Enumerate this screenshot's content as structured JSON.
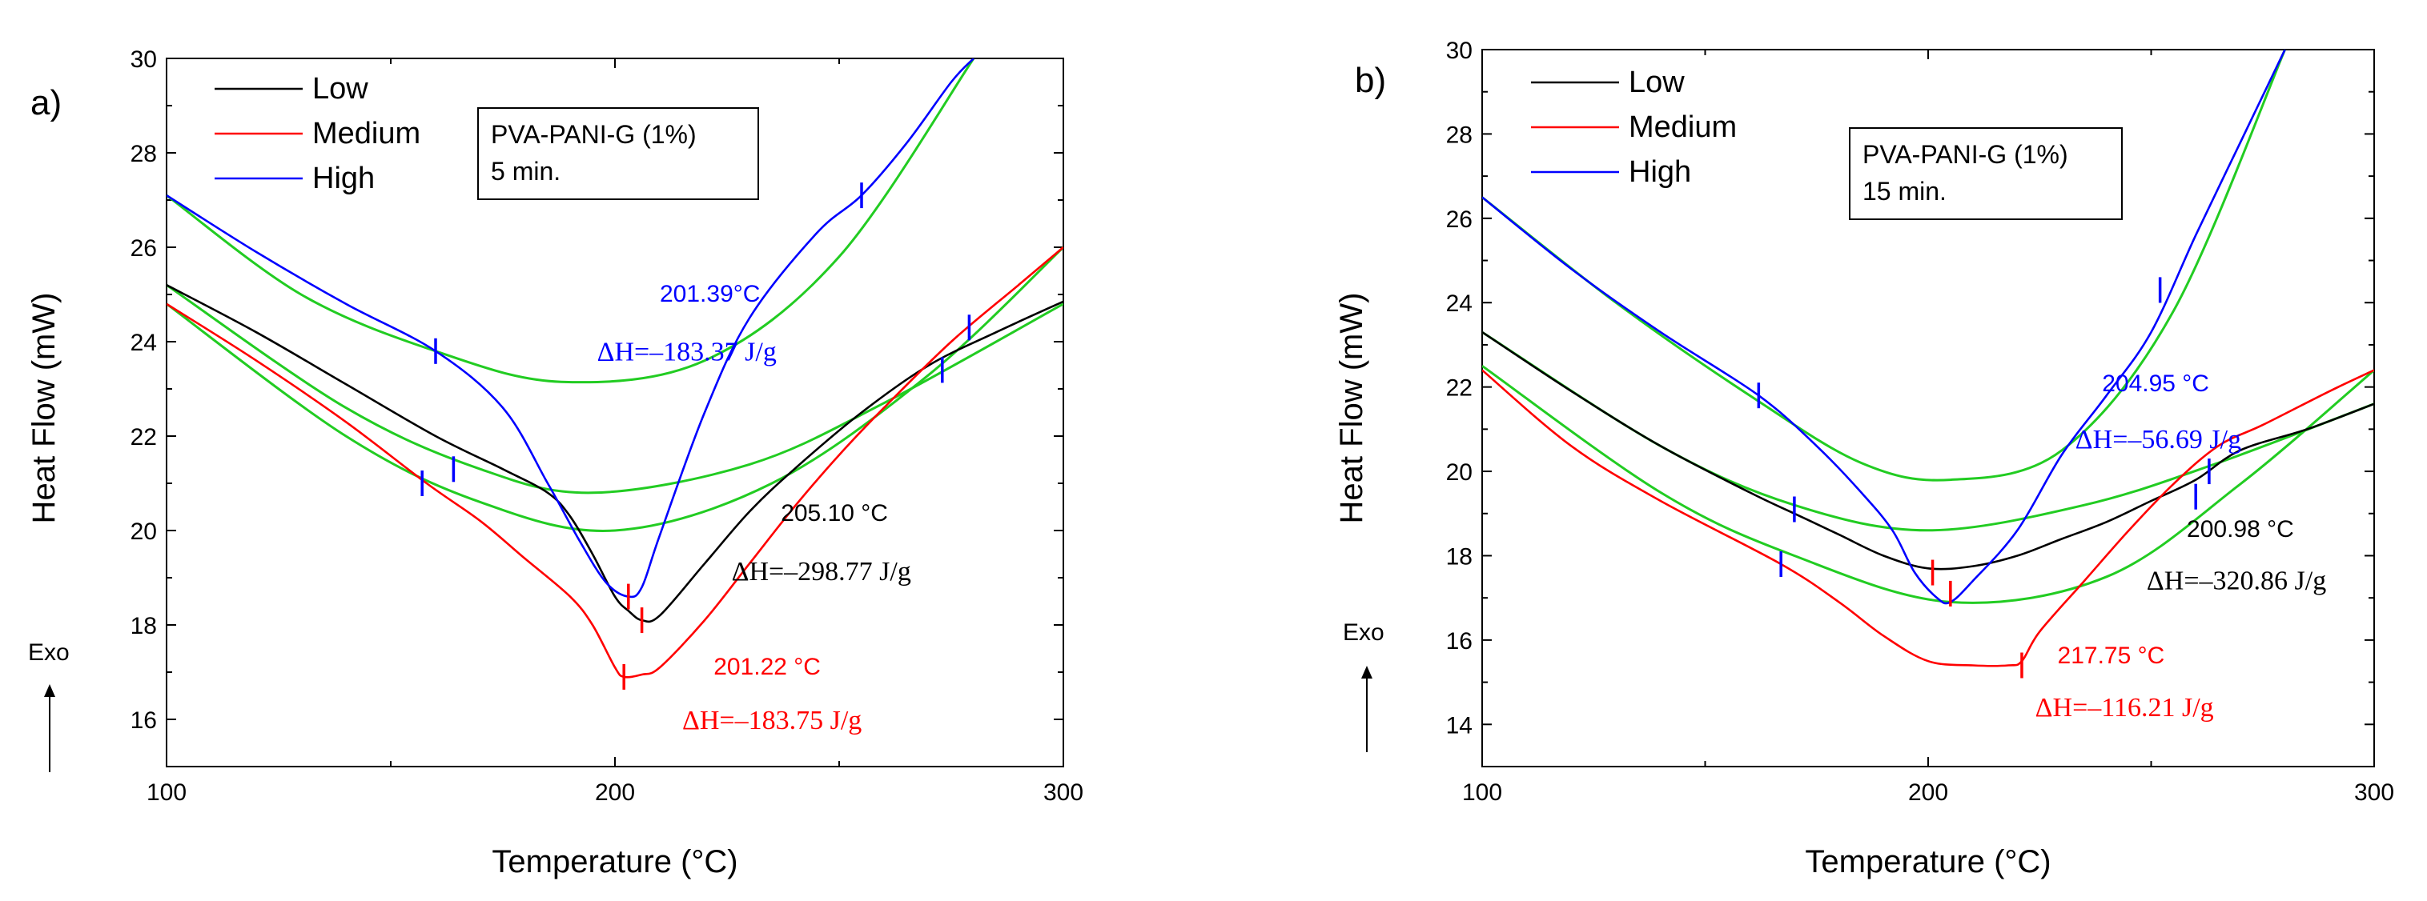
{
  "chart_data": [
    {
      "type": "line",
      "panel_label": "a)",
      "xlabel": "Temperature (°C)",
      "ylabel": "Heat Flow (mW)",
      "xlim": [
        100,
        300
      ],
      "ylim": [
        15,
        30
      ],
      "xticks": [
        "100",
        "200",
        "300"
      ],
      "yticks": [
        "16",
        "18",
        "20",
        "22",
        "24",
        "26",
        "28",
        "30"
      ],
      "exo_label": "Exo",
      "box_lines": [
        "PVA-PANI-G (1%)",
        "5 min."
      ],
      "legend": [
        "Low",
        "Medium",
        "High"
      ],
      "colors": {
        "Low": "#000000",
        "Medium": "#ff0000",
        "High": "#0000ff",
        "baseline": "#22cc22"
      },
      "series": [
        {
          "name": "Low",
          "x": [
            100,
            120,
            140,
            160,
            175,
            185,
            190,
            195,
            200,
            203,
            206,
            210,
            220,
            230,
            240,
            255,
            270,
            285,
            300
          ],
          "y": [
            25.2,
            24.2,
            23.1,
            22.0,
            21.3,
            20.8,
            20.3,
            19.5,
            18.6,
            18.3,
            18.1,
            18.2,
            19.3,
            20.4,
            21.3,
            22.5,
            23.5,
            24.2,
            24.85
          ]
        },
        {
          "name": "Medium",
          "x": [
            100,
            120,
            140,
            158,
            170,
            180,
            190,
            195,
            200,
            202,
            206,
            210,
            220,
            230,
            240,
            250,
            260,
            275,
            290,
            300
          ],
          "y": [
            24.8,
            23.6,
            22.3,
            21.0,
            20.2,
            19.4,
            18.6,
            18.0,
            17.1,
            16.9,
            16.95,
            17.1,
            18.1,
            19.3,
            20.5,
            21.6,
            22.6,
            24.0,
            25.2,
            26.0
          ],
          "kinks": [
            {
              "x": 175,
              "y": 19.8
            }
          ]
        },
        {
          "name": "High",
          "x": [
            100,
            120,
            140,
            160,
            175,
            185,
            192,
            198,
            203,
            206,
            210,
            220,
            230,
            245,
            255,
            265,
            275,
            280
          ],
          "y": [
            27.1,
            25.9,
            24.8,
            23.8,
            22.6,
            21.0,
            19.8,
            18.9,
            18.6,
            18.8,
            19.9,
            22.5,
            24.5,
            26.3,
            27.1,
            28.2,
            29.5,
            30.0
          ]
        }
      ],
      "baselines": [
        {
          "x": [
            100,
            130,
            160,
            188,
            220,
            250,
            280
          ],
          "y": [
            27.1,
            25.0,
            23.8,
            23.15,
            23.6,
            25.8,
            30.0
          ]
        },
        {
          "x": [
            100,
            140,
            170,
            195,
            230,
            260,
            300
          ],
          "y": [
            25.2,
            22.6,
            21.3,
            20.8,
            21.4,
            22.7,
            24.8
          ]
        },
        {
          "x": [
            100,
            140,
            170,
            200,
            235,
            270,
            300
          ],
          "y": [
            24.8,
            22.0,
            20.6,
            20.0,
            21.0,
            23.3,
            26.0
          ]
        }
      ],
      "markers": [
        {
          "series": "High",
          "x": 160,
          "y": 23.8
        },
        {
          "series": "High",
          "x": 255,
          "y": 27.1
        },
        {
          "series": "High",
          "x": 157,
          "y": 21.0
        },
        {
          "series": "High",
          "x": 164,
          "y": 21.3
        },
        {
          "series": "High",
          "x": 273,
          "y": 23.4
        },
        {
          "series": "High",
          "x": 279,
          "y": 24.3
        },
        {
          "series": "Medium",
          "x": 203,
          "y": 18.6
        },
        {
          "series": "Medium",
          "x": 206,
          "y": 18.1
        },
        {
          "series": "Medium",
          "x": 202,
          "y": 16.9
        }
      ],
      "annotations": [
        {
          "text": "201.39°C",
          "color": "#0000ff",
          "x": 210,
          "y": 24.85,
          "font": "sans"
        },
        {
          "text": "ΔH=–183.37 J/g",
          "color": "#0000ff",
          "x": 196,
          "y": 23.6,
          "font": "serif"
        },
        {
          "text": "205.10 °C",
          "color": "#000000",
          "x": 237,
          "y": 20.2,
          "font": "sans"
        },
        {
          "text": "ΔH=–298.77 J/g",
          "color": "#000000",
          "x": 226,
          "y": 18.95,
          "font": "serif"
        },
        {
          "text": "201.22 °C",
          "color": "#ff0000",
          "x": 222,
          "y": 16.95,
          "font": "sans"
        },
        {
          "text": "ΔH=–183.75 J/g",
          "color": "#ff0000",
          "x": 215,
          "y": 15.8,
          "font": "serif"
        }
      ]
    },
    {
      "type": "line",
      "panel_label": "b)",
      "xlabel": "Temperature (°C)",
      "ylabel": "Heat Flow (mW)",
      "xlim": [
        100,
        300
      ],
      "ylim": [
        13,
        30
      ],
      "xticks": [
        "100",
        "200",
        "300"
      ],
      "yticks": [
        "14",
        "16",
        "18",
        "20",
        "22",
        "24",
        "26",
        "28",
        "30"
      ],
      "exo_label": "Exo",
      "box_lines": [
        "PVA-PANI-G (1%)",
        "15 min."
      ],
      "legend": [
        "Low",
        "Medium",
        "High"
      ],
      "colors": {
        "Low": "#000000",
        "Medium": "#ff0000",
        "High": "#0000ff",
        "baseline": "#22cc22"
      },
      "series": [
        {
          "name": "Low",
          "x": [
            100,
            120,
            140,
            160,
            170,
            180,
            190,
            200,
            210,
            220,
            230,
            240,
            250,
            260,
            270,
            285,
            300
          ],
          "y": [
            23.3,
            21.9,
            20.6,
            19.5,
            19.0,
            18.5,
            18.0,
            17.7,
            17.75,
            18.0,
            18.4,
            18.8,
            19.3,
            19.8,
            20.5,
            21.0,
            21.6
          ]
        },
        {
          "name": "Medium",
          "x": [
            100,
            120,
            140,
            167,
            180,
            190,
            200,
            210,
            218,
            221,
            225,
            235,
            245,
            255,
            265,
            275,
            290,
            300
          ],
          "y": [
            22.4,
            20.6,
            19.3,
            17.8,
            16.9,
            16.1,
            15.5,
            15.4,
            15.4,
            15.5,
            16.2,
            17.4,
            18.6,
            19.7,
            20.6,
            21.1,
            21.9,
            22.4
          ]
        },
        {
          "name": "High",
          "x": [
            100,
            120,
            140,
            162,
            175,
            185,
            192,
            197,
            202,
            205,
            210,
            220,
            230,
            240,
            250,
            260,
            270,
            280
          ],
          "y": [
            26.5,
            24.8,
            23.3,
            21.8,
            20.6,
            19.5,
            18.6,
            17.6,
            17.0,
            16.9,
            17.4,
            18.6,
            20.4,
            21.8,
            23.3,
            25.6,
            27.8,
            30.0
          ]
        }
      ],
      "baselines": [
        {
          "x": [
            100,
            130,
            160,
            185,
            205,
            230,
            255,
            280
          ],
          "y": [
            26.5,
            24.0,
            21.8,
            20.2,
            19.8,
            20.5,
            23.8,
            30.0
          ]
        },
        {
          "x": [
            100,
            140,
            170,
            200,
            235,
            265,
            300
          ],
          "y": [
            23.3,
            20.6,
            19.2,
            18.6,
            19.2,
            20.2,
            21.6
          ]
        },
        {
          "x": [
            100,
            140,
            170,
            205,
            240,
            270,
            300
          ],
          "y": [
            22.5,
            19.5,
            18.0,
            16.9,
            17.5,
            19.7,
            22.4
          ]
        }
      ],
      "markers": [
        {
          "series": "High",
          "x": 162,
          "y": 21.8
        },
        {
          "series": "High",
          "x": 252,
          "y": 24.3
        },
        {
          "series": "High",
          "x": 170,
          "y": 19.1
        },
        {
          "series": "High",
          "x": 167,
          "y": 17.8
        },
        {
          "series": "High",
          "x": 263,
          "y": 20.0
        },
        {
          "series": "High",
          "x": 260,
          "y": 19.4
        },
        {
          "series": "Medium",
          "x": 201,
          "y": 17.6
        },
        {
          "series": "Medium",
          "x": 205,
          "y": 17.1
        },
        {
          "series": "Medium",
          "x": 221,
          "y": 15.4
        }
      ],
      "annotations": [
        {
          "text": "204.95 °C",
          "color": "#0000ff",
          "x": 239,
          "y": 21.9,
          "font": "sans"
        },
        {
          "text": "ΔH=–56.69 J/g",
          "color": "#0000ff",
          "x": 233,
          "y": 20.55,
          "font": "serif"
        },
        {
          "text": "200.98 °C",
          "color": "#000000",
          "x": 258,
          "y": 18.45,
          "font": "sans"
        },
        {
          "text": "ΔH=–320.86 J/g",
          "color": "#000000",
          "x": 249,
          "y": 17.2,
          "font": "serif"
        },
        {
          "text": "217.75 °C",
          "color": "#ff0000",
          "x": 229,
          "y": 15.45,
          "font": "sans"
        },
        {
          "text": "ΔH=–116.21 J/g",
          "color": "#ff0000",
          "x": 224,
          "y": 14.2,
          "font": "serif"
        }
      ]
    }
  ]
}
